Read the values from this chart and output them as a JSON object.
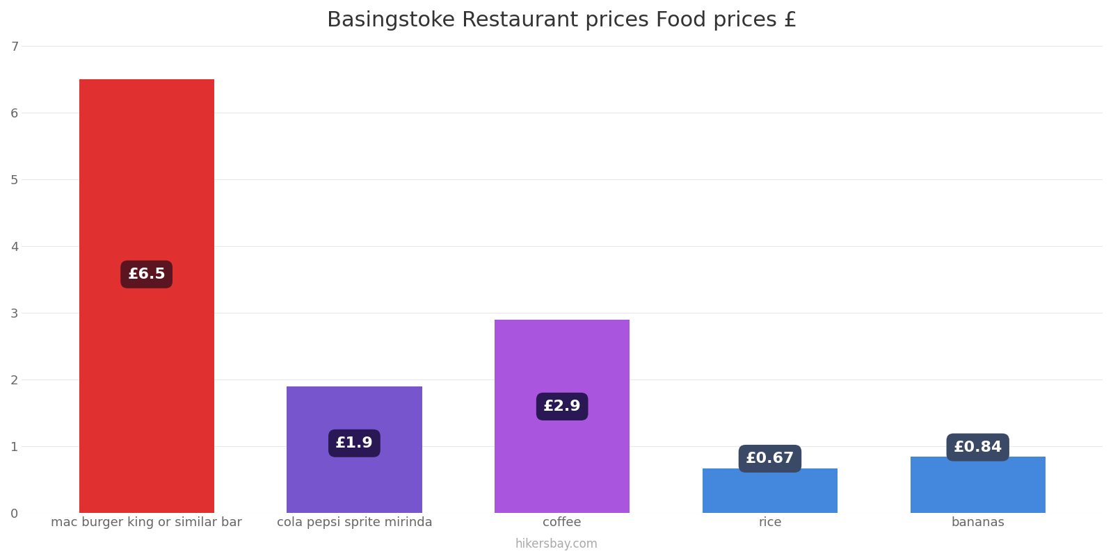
{
  "title": "Basingstoke Restaurant prices Food prices £",
  "categories": [
    "mac burger king or similar bar",
    "cola pepsi sprite mirinda",
    "coffee",
    "rice",
    "bananas"
  ],
  "values": [
    6.5,
    1.9,
    2.9,
    0.67,
    0.84
  ],
  "bar_colors": [
    "#e03030",
    "#7755cc",
    "#aa55dd",
    "#4488dd",
    "#4488dd"
  ],
  "label_texts": [
    "£6.5",
    "£1.9",
    "£2.9",
    "£0.67",
    "£0.84"
  ],
  "label_bg_colors": [
    "#5a1520",
    "#2a1855",
    "#2a1855",
    "#3a4a66",
    "#3a4a66"
  ],
  "ylim": [
    0,
    7
  ],
  "yticks": [
    0,
    1,
    2,
    3,
    4,
    5,
    6,
    7
  ],
  "title_fontsize": 22,
  "tick_fontsize": 13,
  "label_fontsize": 16,
  "background_color": "#ffffff",
  "watermark": "hikersbay.com",
  "bar_width": 0.65
}
